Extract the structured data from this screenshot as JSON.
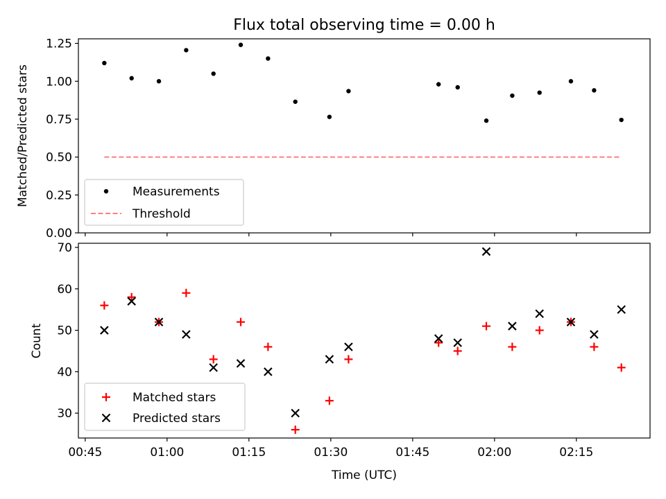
{
  "title": "Flux total observing time = 0.00 h",
  "xlabel": "Time (UTC)",
  "x_ticks": [
    "00:45",
    "01:00",
    "01:15",
    "01:30",
    "01:45",
    "02:00",
    "02:15"
  ],
  "colors": {
    "measurement": "#000000",
    "threshold": "#ff7f7f",
    "matched": "#ff0000",
    "predicted": "#000000"
  },
  "chart_data": [
    {
      "type": "scatter",
      "ylabel": "Matched/Predicted stars",
      "xlim": [
        "00:43:45",
        "02:28:30"
      ],
      "ylim": [
        0,
        1.28
      ],
      "y_ticks": [
        "0.00",
        "0.25",
        "0.50",
        "0.75",
        "1.00",
        "1.25"
      ],
      "legend_position": "lower-left",
      "series": [
        {
          "name": "Measurements",
          "x": [
            "00:48:30",
            "00:53:30",
            "00:58:30",
            "01:03:30",
            "01:08:30",
            "01:13:30",
            "01:18:30",
            "01:23:30",
            "01:29:45",
            "01:33:15",
            "01:49:45",
            "01:53:15",
            "01:58:30",
            "02:03:15",
            "02:08:15",
            "02:14:00",
            "02:18:15",
            "02:23:15"
          ],
          "y": [
            1.12,
            1.02,
            1.0,
            1.205,
            1.05,
            1.24,
            1.15,
            0.865,
            0.765,
            0.935,
            0.98,
            0.96,
            0.74,
            0.905,
            0.925,
            1.0,
            0.94,
            0.745
          ]
        },
        {
          "name": "Threshold",
          "x": [
            "00:48:30",
            "02:23:15"
          ],
          "y": [
            0.5,
            0.5
          ]
        }
      ]
    },
    {
      "type": "scatter",
      "ylabel": "Count",
      "xlim": [
        "00:43:45",
        "02:28:30"
      ],
      "ylim": [
        24,
        71
      ],
      "y_ticks": [
        "30",
        "40",
        "50",
        "60",
        "70"
      ],
      "legend_position": "lower-left",
      "series": [
        {
          "name": "Matched stars",
          "x": [
            "00:48:30",
            "00:53:30",
            "00:58:30",
            "01:03:30",
            "01:08:30",
            "01:13:30",
            "01:18:30",
            "01:23:30",
            "01:29:45",
            "01:33:15",
            "01:49:45",
            "01:53:15",
            "01:58:30",
            "02:03:15",
            "02:08:15",
            "02:14:00",
            "02:18:15",
            "02:23:15"
          ],
          "y": [
            56,
            58,
            52,
            59,
            43,
            52,
            46,
            26,
            33,
            43,
            47,
            45,
            51,
            46,
            50,
            52,
            46,
            41
          ]
        },
        {
          "name": "Predicted stars",
          "x": [
            "00:48:30",
            "00:53:30",
            "00:58:30",
            "01:03:30",
            "01:08:30",
            "01:13:30",
            "01:18:30",
            "01:23:30",
            "01:29:45",
            "01:33:15",
            "01:49:45",
            "01:53:15",
            "01:58:30",
            "02:03:15",
            "02:08:15",
            "02:14:00",
            "02:18:15",
            "02:23:15"
          ],
          "y": [
            50,
            57,
            52,
            49,
            41,
            42,
            40,
            30,
            43,
            46,
            48,
            47,
            69,
            51,
            54,
            52,
            49,
            55
          ]
        }
      ]
    }
  ]
}
